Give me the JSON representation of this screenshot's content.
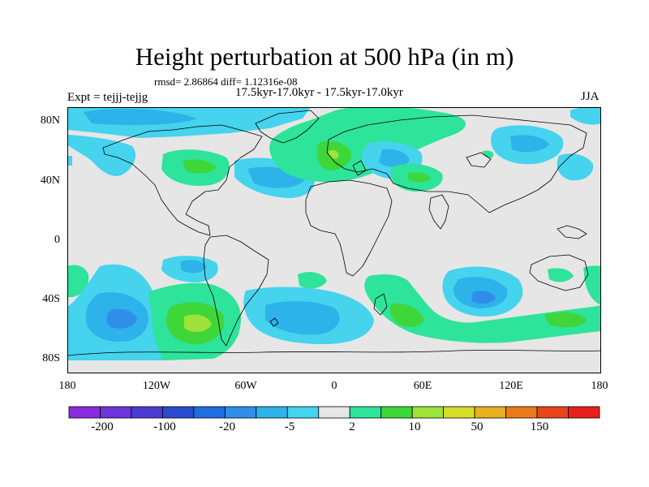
{
  "title": "Height perturbation at 500 hPa (in m)",
  "stats": "rmsd= 2.86864 diff= 1.12316e-08",
  "period": "17.5kyr-17.0kyr - 17.5kyr-17.0kyr",
  "expt": "Expt = tejjj-tejjg",
  "season": "JJA",
  "lat_labels": [
    "80N",
    "40N",
    "0",
    "40S",
    "80S"
  ],
  "lon_labels": [
    "180",
    "120W",
    "60W",
    "0",
    "60E",
    "120E",
    "180"
  ],
  "colorbar": {
    "colors": [
      "#8a2be2",
      "#6a35d9",
      "#4a3cd1",
      "#2b4ccc",
      "#1d6ee0",
      "#2f8fe8",
      "#2eb2ea",
      "#45d3ee",
      "#e6e6e6",
      "#2ee39a",
      "#3fd63a",
      "#9ee23a",
      "#d6dc2a",
      "#e7b020",
      "#eb7a1a",
      "#e84518",
      "#e8201c"
    ],
    "labels": [
      "-200",
      "-100",
      "-20",
      "-5",
      "2",
      "10",
      "50",
      "150"
    ]
  },
  "colors": {
    "neutral": "#e6e6e6",
    "light_blue": "#45d3ee",
    "blue": "#2eb2ea",
    "dark_blue": "#2f8fe8",
    "green": "#2ee39a",
    "bright_green": "#3fd63a",
    "yellow_green": "#9ee23a",
    "yellow": "#d6dc2a"
  }
}
